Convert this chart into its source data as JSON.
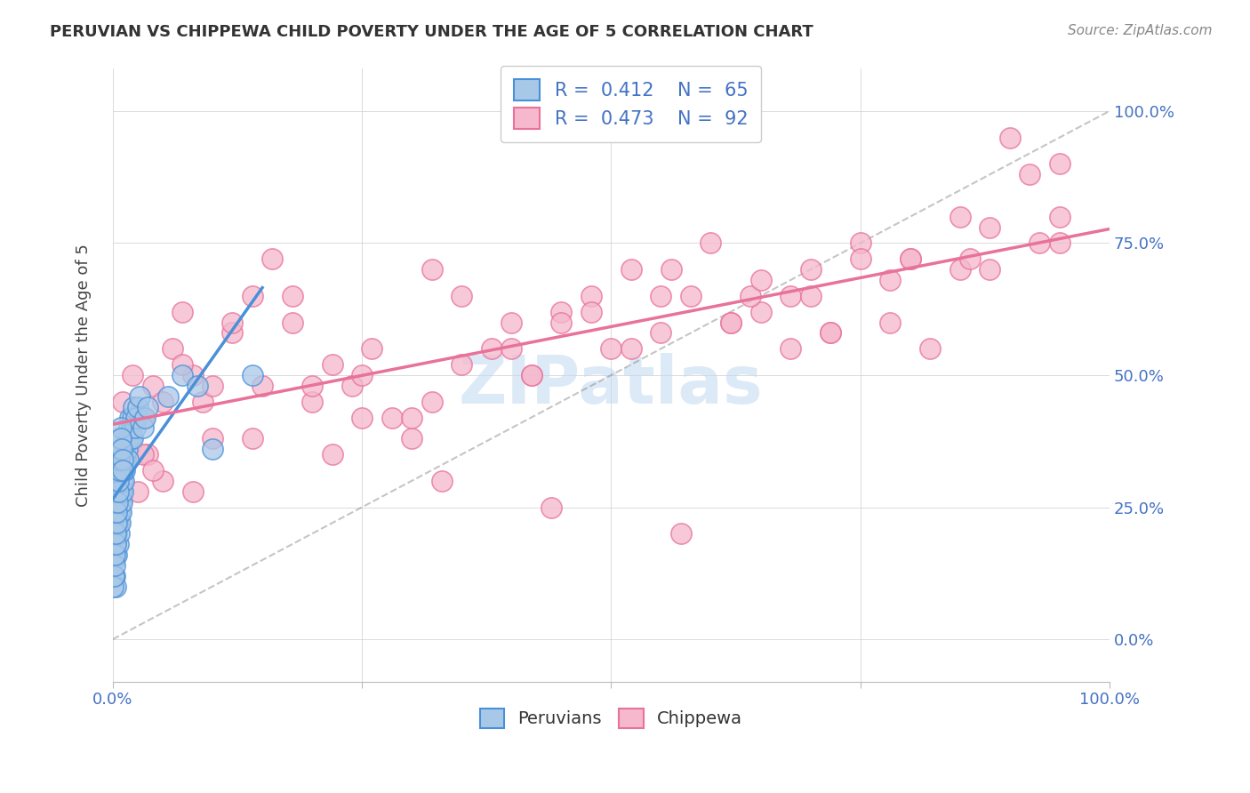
{
  "title": "PERUVIAN VS CHIPPEWA CHILD POVERTY UNDER THE AGE OF 5 CORRELATION CHART",
  "source": "Source: ZipAtlas.com",
  "ylabel": "Child Poverty Under the Age of 5",
  "blue_label": "Peruvians",
  "pink_label": "Chippewa",
  "blue_R": 0.412,
  "blue_N": 65,
  "pink_R": 0.473,
  "pink_N": 92,
  "blue_color": "#a8c8e8",
  "pink_color": "#f5b8cc",
  "blue_line_color": "#4a90d9",
  "pink_line_color": "#e8729a",
  "blue_edge_color": "#4a90d9",
  "pink_edge_color": "#e8729a",
  "watermark": "ZIPatlas",
  "blue_scatter_x": [
    0.1,
    0.2,
    0.3,
    0.3,
    0.4,
    0.4,
    0.5,
    0.5,
    0.6,
    0.6,
    0.7,
    0.7,
    0.8,
    0.8,
    0.9,
    0.9,
    1.0,
    1.0,
    1.1,
    1.1,
    1.2,
    1.2,
    1.3,
    1.4,
    1.5,
    1.5,
    1.6,
    1.7,
    1.8,
    1.9,
    2.0,
    2.0,
    2.1,
    2.2,
    2.3,
    2.5,
    2.7,
    3.0,
    3.2,
    3.5,
    0.05,
    0.1,
    0.15,
    0.2,
    0.25,
    0.3,
    0.35,
    0.4,
    0.45,
    0.5,
    0.55,
    0.6,
    0.65,
    0.7,
    0.75,
    0.8,
    0.85,
    0.9,
    0.95,
    1.0,
    7.0,
    8.5,
    14.0,
    5.5,
    10.0
  ],
  "blue_scatter_y": [
    15,
    12,
    10,
    18,
    16,
    20,
    22,
    18,
    24,
    20,
    26,
    22,
    28,
    24,
    30,
    26,
    32,
    28,
    34,
    30,
    36,
    32,
    34,
    36,
    38,
    34,
    40,
    42,
    38,
    40,
    42,
    38,
    44,
    40,
    42,
    44,
    46,
    40,
    42,
    44,
    10,
    12,
    14,
    16,
    18,
    20,
    22,
    24,
    26,
    28,
    30,
    32,
    34,
    36,
    38,
    40,
    38,
    36,
    34,
    32,
    50,
    48,
    50,
    46,
    36
  ],
  "pink_scatter_x": [
    0.5,
    1.0,
    1.5,
    2.0,
    2.5,
    3.0,
    3.5,
    4.0,
    5.0,
    6.0,
    7.0,
    8.0,
    9.0,
    10.0,
    12.0,
    14.0,
    16.0,
    18.0,
    20.0,
    22.0,
    24.0,
    26.0,
    28.0,
    30.0,
    32.0,
    35.0,
    38.0,
    40.0,
    42.0,
    45.0,
    48.0,
    50.0,
    52.0,
    55.0,
    58.0,
    60.0,
    62.0,
    65.0,
    68.0,
    70.0,
    72.0,
    75.0,
    78.0,
    80.0,
    82.0,
    85.0,
    88.0,
    90.0,
    92.0,
    95.0,
    3.0,
    7.0,
    12.0,
    18.0,
    25.0,
    32.0,
    40.0,
    48.0,
    56.0,
    64.0,
    72.0,
    80.0,
    88.0,
    95.0,
    5.0,
    15.0,
    25.0,
    35.0,
    45.0,
    55.0,
    65.0,
    75.0,
    85.0,
    95.0,
    10.0,
    20.0,
    30.0,
    42.0,
    52.0,
    62.0,
    70.0,
    78.0,
    86.0,
    93.0,
    4.0,
    8.0,
    14.0,
    22.0,
    33.0,
    44.0,
    57.0,
    68.0
  ],
  "pink_scatter_y": [
    32,
    45,
    38,
    50,
    28,
    42,
    35,
    48,
    30,
    55,
    62,
    50,
    45,
    48,
    58,
    65,
    72,
    60,
    45,
    52,
    48,
    55,
    42,
    38,
    70,
    65,
    55,
    60,
    50,
    62,
    65,
    55,
    70,
    58,
    65,
    75,
    60,
    62,
    65,
    70,
    58,
    75,
    60,
    72,
    55,
    80,
    70,
    95,
    88,
    90,
    35,
    52,
    60,
    65,
    50,
    45,
    55,
    62,
    70,
    65,
    58,
    72,
    78,
    75,
    45,
    48,
    42,
    52,
    60,
    65,
    68,
    72,
    70,
    80,
    38,
    48,
    42,
    50,
    55,
    60,
    65,
    68,
    72,
    75,
    32,
    28,
    38,
    35,
    30,
    25,
    20,
    55
  ]
}
